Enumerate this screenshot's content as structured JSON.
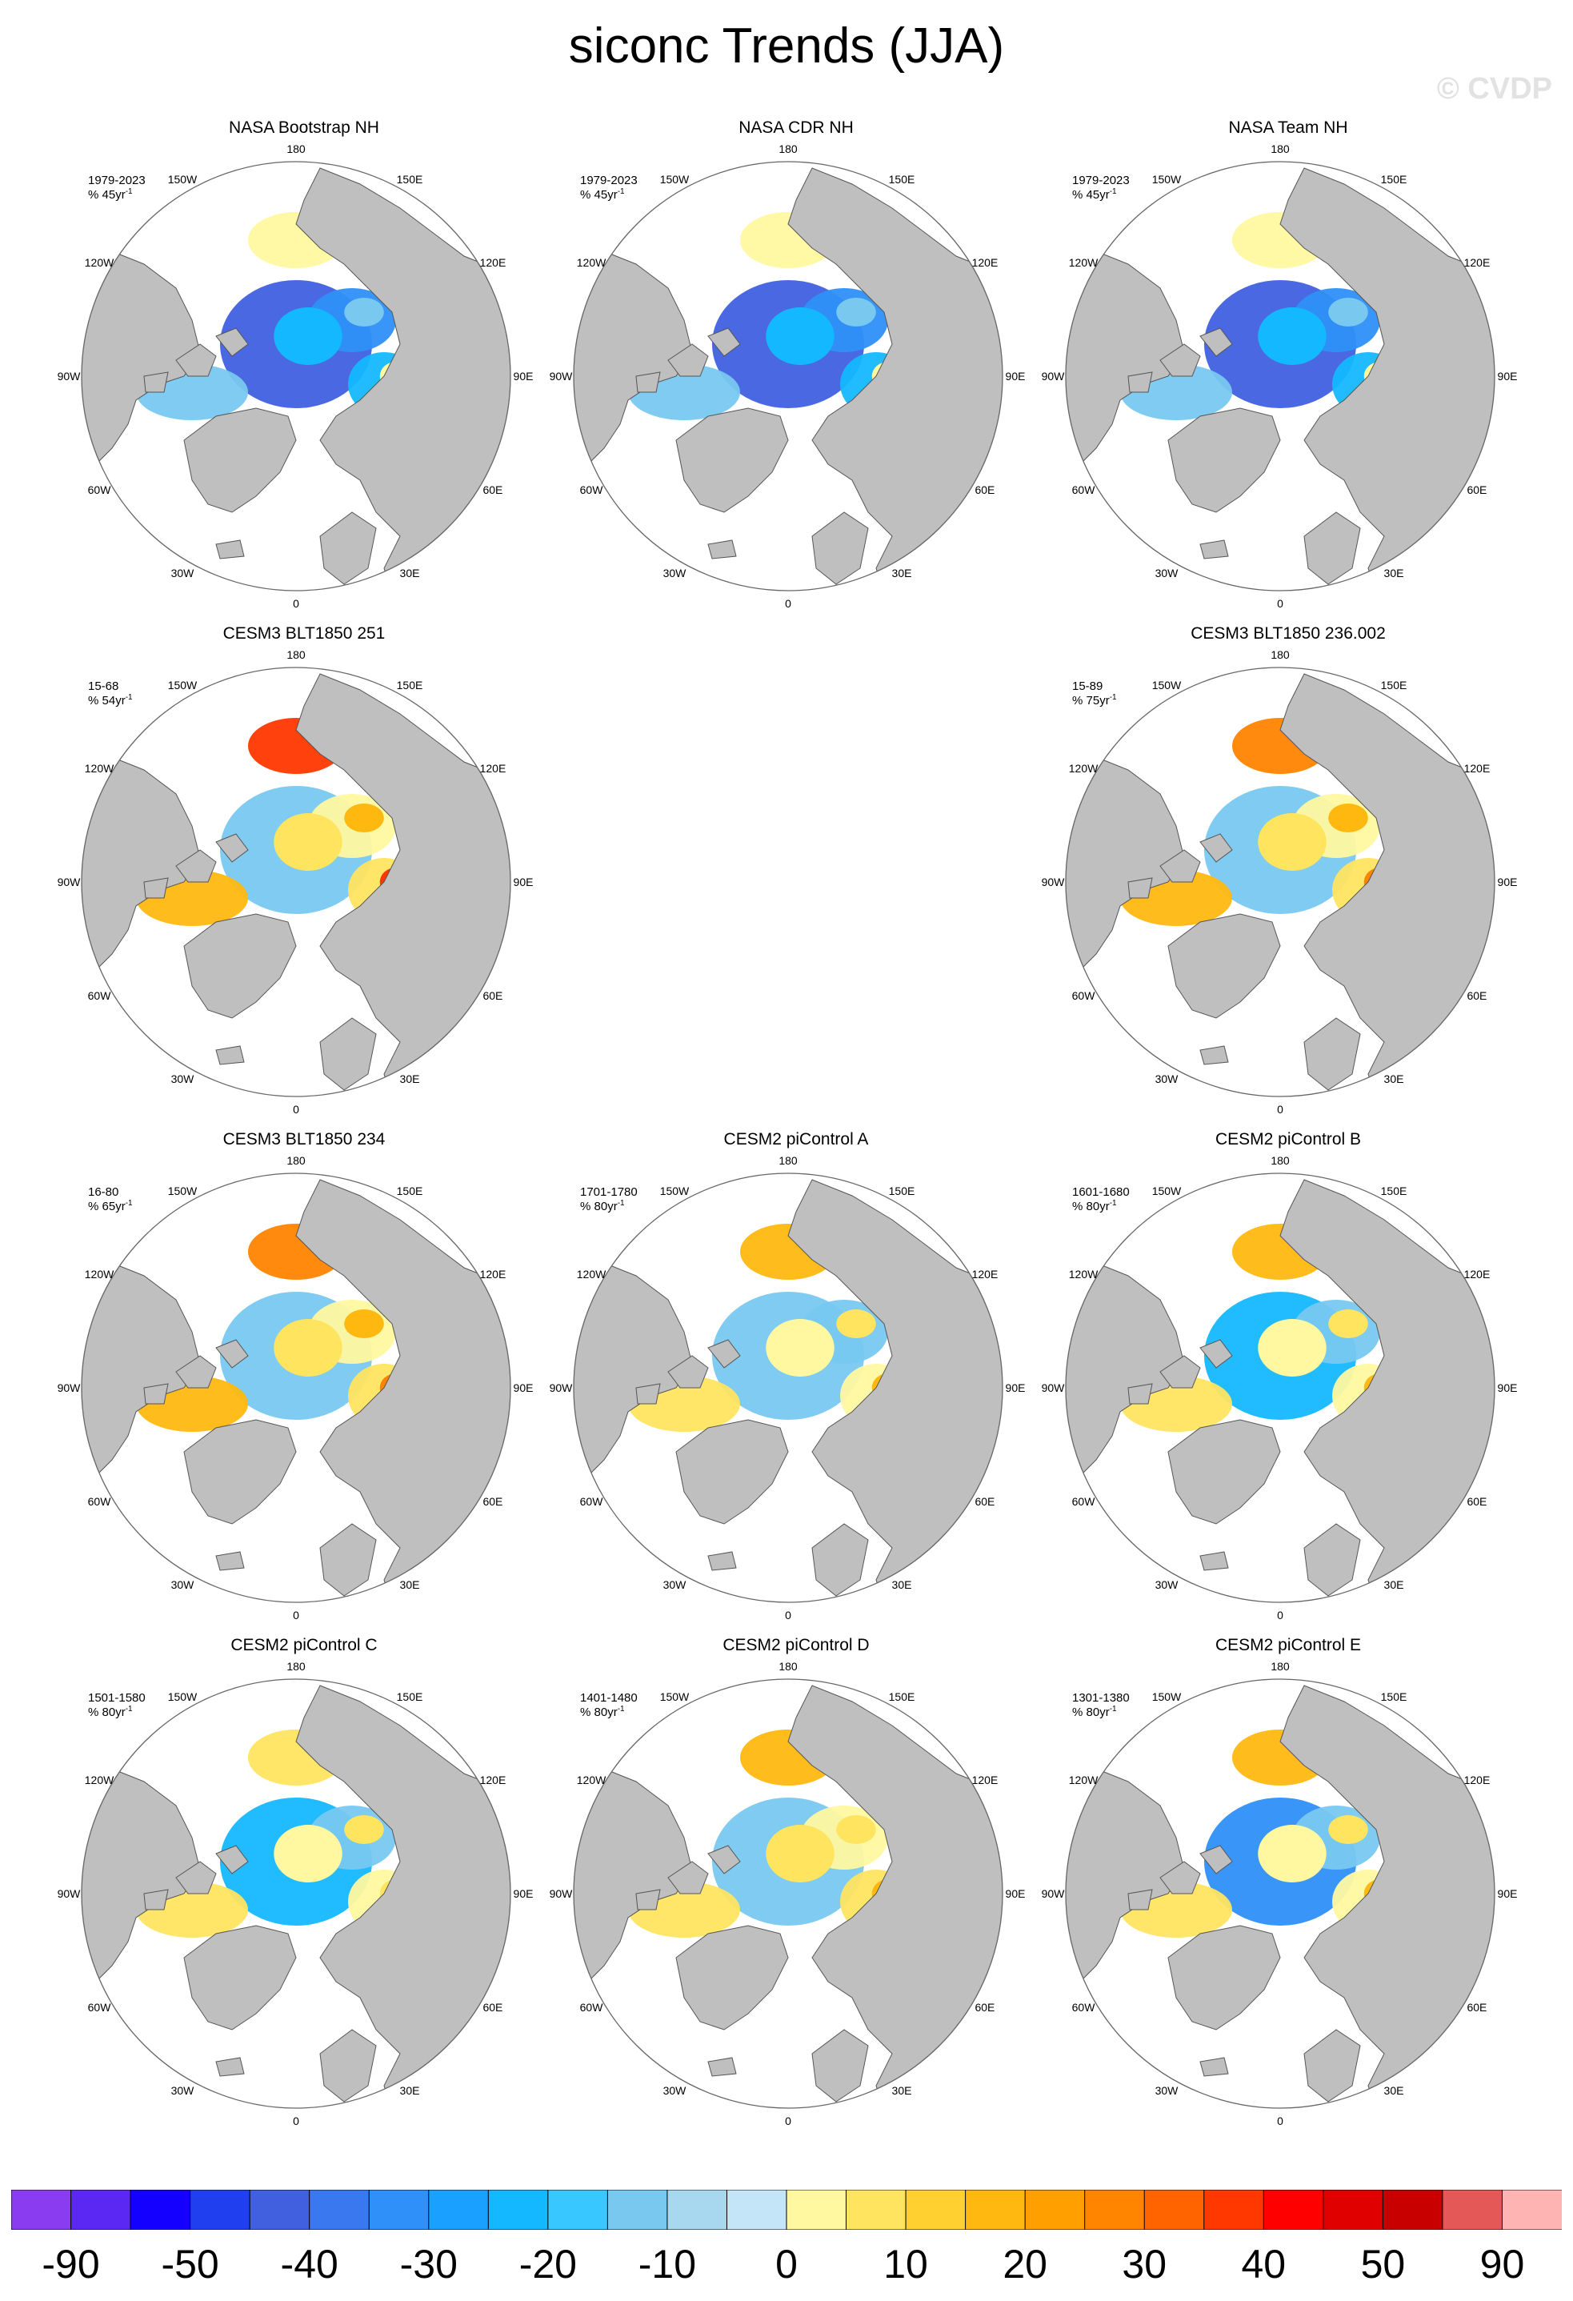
{
  "title": "siconc Trends (JJA)",
  "watermark": "© CVDP",
  "longitude_labels": [
    "180",
    "150E",
    "120E",
    "90E",
    "60E",
    "30E",
    "0",
    "30W",
    "60W",
    "90W",
    "120W",
    "150W"
  ],
  "land_color": "#bfbfbf",
  "panels": [
    {
      "title": "NASA Bootstrap NH",
      "period": "1979-2023",
      "units": "% 45yr",
      "units_sup": "-1",
      "row": 0,
      "col": 0,
      "trend": [
        -40,
        -30,
        -20,
        -10,
        0
      ]
    },
    {
      "title": "NASA CDR NH",
      "period": "1979-2023",
      "units": "% 45yr",
      "units_sup": "-1",
      "row": 0,
      "col": 1,
      "trend": [
        -40,
        -30,
        -20,
        -10,
        0
      ]
    },
    {
      "title": "NASA Team NH",
      "period": "1979-2023",
      "units": "% 45yr",
      "units_sup": "-1",
      "row": 0,
      "col": 2,
      "trend": [
        -40,
        -30,
        -20,
        -10,
        0
      ]
    },
    {
      "title": "CESM3 BLT1850 251",
      "period": "15-68",
      "units": "% 54yr",
      "units_sup": "-1",
      "row": 1,
      "col": 0,
      "trend": [
        -10,
        0,
        10,
        20,
        40
      ]
    },
    {
      "title": "CESM3 BLT1850 236.002",
      "period": "15-89",
      "units": "% 75yr",
      "units_sup": "-1",
      "row": 1,
      "col": 2,
      "trend": [
        -10,
        0,
        10,
        20,
        30
      ]
    },
    {
      "title": "CESM3 BLT1850 234",
      "period": "16-80",
      "units": "% 65yr",
      "units_sup": "-1",
      "row": 2,
      "col": 0,
      "trend": [
        -10,
        0,
        10,
        20,
        30
      ]
    },
    {
      "title": "CESM2 piControl A",
      "period": "1701-1780",
      "units": "% 80yr",
      "units_sup": "-1",
      "row": 2,
      "col": 1,
      "trend": [
        -10,
        -10,
        0,
        10,
        20
      ]
    },
    {
      "title": "CESM2 piControl B",
      "period": "1601-1680",
      "units": "% 80yr",
      "units_sup": "-1",
      "row": 2,
      "col": 2,
      "trend": [
        -20,
        -10,
        0,
        10,
        20
      ]
    },
    {
      "title": "CESM2 piControl C",
      "period": "1501-1580",
      "units": "% 80yr",
      "units_sup": "-1",
      "row": 3,
      "col": 0,
      "trend": [
        -20,
        -10,
        0,
        10,
        10
      ]
    },
    {
      "title": "CESM2 piControl D",
      "period": "1401-1480",
      "units": "% 80yr",
      "units_sup": "-1",
      "row": 3,
      "col": 1,
      "trend": [
        -10,
        0,
        10,
        10,
        20
      ]
    },
    {
      "title": "CESM2 piControl E",
      "period": "1301-1380",
      "units": "% 80yr",
      "units_sup": "-1",
      "row": 3,
      "col": 2,
      "trend": [
        -30,
        -10,
        0,
        10,
        20
      ]
    }
  ],
  "colorbar": {
    "colors": [
      "#8a3cf0",
      "#5a28f2",
      "#1400ff",
      "#2040f0",
      "#4060e0",
      "#3a78f0",
      "#2e90f8",
      "#1aa0ff",
      "#14b8ff",
      "#38c8ff",
      "#78c8f0",
      "#a8d8f0",
      "#c4e4f8",
      "#fff8a0",
      "#ffe460",
      "#ffd030",
      "#ffb810",
      "#ffa000",
      "#ff8400",
      "#ff6400",
      "#ff3800",
      "#ff0000",
      "#e00000",
      "#c80000",
      "#e45858",
      "#ffb4b4"
    ],
    "labels": [
      "-90",
      "-50",
      "-40",
      "-30",
      "-20",
      "-10",
      "0",
      "10",
      "20",
      "30",
      "40",
      "50",
      "90"
    ]
  }
}
